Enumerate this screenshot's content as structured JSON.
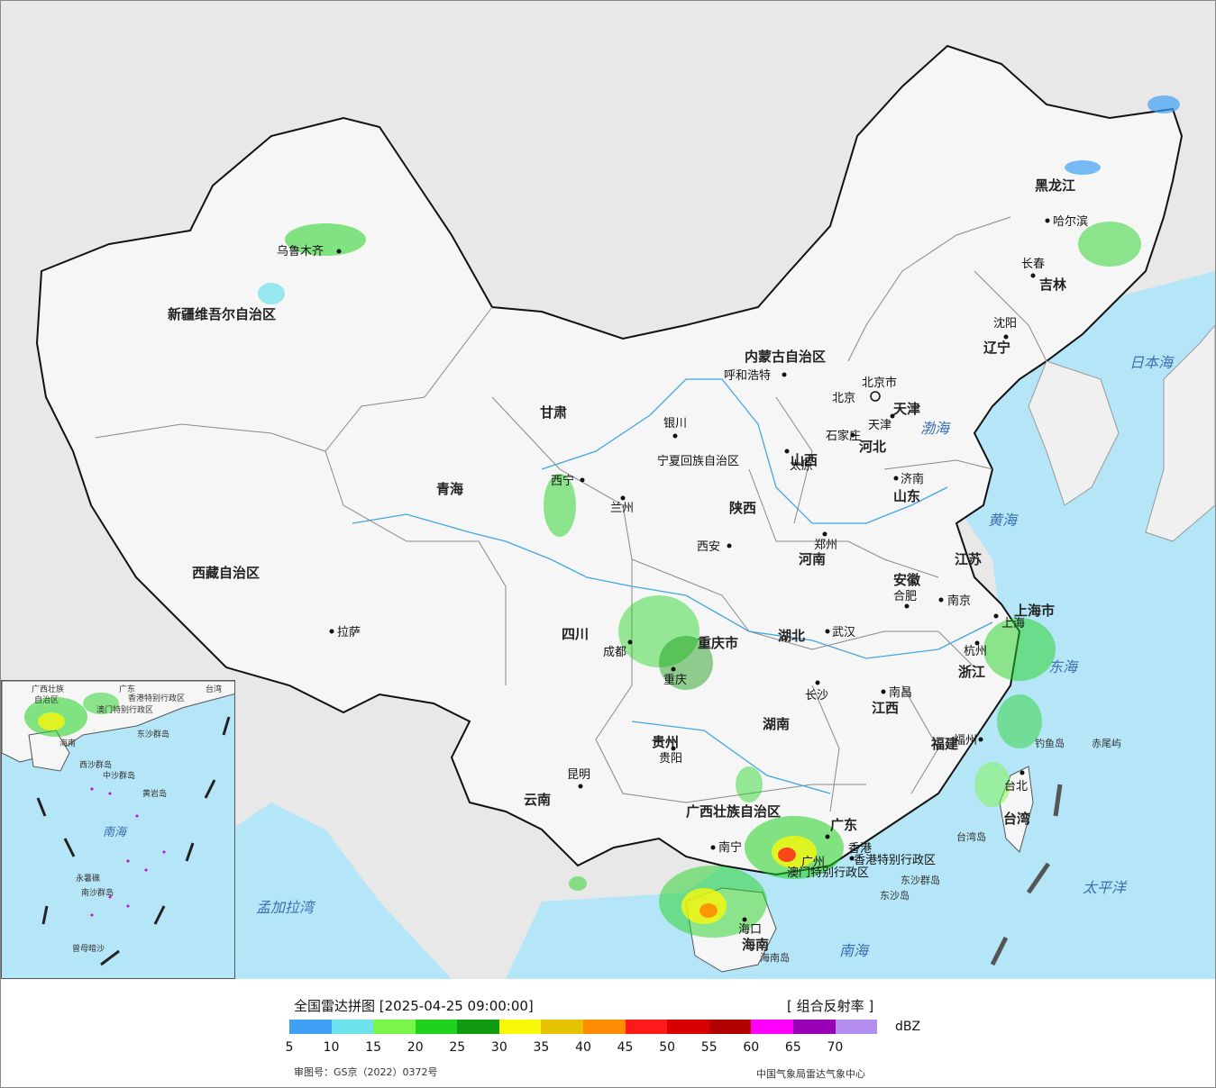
{
  "header": {
    "title": "全国雷达拼图 [2025-04-25 09:00:00]",
    "product": "[ 组合反射率 ]"
  },
  "legend": {
    "unit": "dBZ",
    "colors": [
      "#3fa0f5",
      "#6ee3ee",
      "#7af54a",
      "#1fd21f",
      "#0f9a0f",
      "#f8f80a",
      "#e6c200",
      "#ff8c00",
      "#ff1a1a",
      "#d90000",
      "#b00000",
      "#ff00ff",
      "#9900b5",
      "#b28ef0"
    ],
    "ticks": [
      "5",
      "10",
      "15",
      "20",
      "25",
      "30",
      "35",
      "40",
      "45",
      "50",
      "55",
      "60",
      "65",
      "70"
    ]
  },
  "footer": {
    "approval_number": "审图号：GS京（2022）0372号",
    "source": "中国气象局雷达气象中心"
  },
  "map": {
    "provinces": [
      "新疆维吾尔自治区",
      "西藏自治区",
      "青海",
      "甘肃",
      "内蒙古自治区",
      "黑龙江",
      "吉林",
      "辽宁",
      "河北",
      "山西",
      "陕西",
      "四川",
      "重庆市",
      "贵州",
      "云南",
      "湖北",
      "湖南",
      "河南",
      "山东",
      "江苏",
      "安徽",
      "浙江",
      "江西",
      "福建",
      "广东",
      "广西壮族自治区",
      "海南",
      "台湾",
      "上海市",
      "天津",
      "北京市",
      "宁夏回族自治区",
      "香港特别行政区",
      "澳门特别行政区"
    ],
    "cities": [
      "乌鲁木齐",
      "拉萨",
      "西宁",
      "兰州",
      "银川",
      "呼和浩特",
      "北京",
      "天津",
      "石家庄",
      "太原",
      "济南",
      "郑州",
      "西安",
      "成都",
      "重庆",
      "贵阳",
      "昆明",
      "南宁",
      "长沙",
      "武汉",
      "合肥",
      "南京",
      "上海",
      "杭州",
      "南昌",
      "福州",
      "台北",
      "广州",
      "香港",
      "海口",
      "哈尔滨",
      "长春",
      "沈阳"
    ],
    "seas": [
      "日本海",
      "渤海",
      "黄海",
      "东海",
      "太平洋",
      "南海",
      "孟加拉湾"
    ],
    "islands": [
      "钓鱼岛",
      "赤尾屿",
      "台湾岛",
      "东沙群岛",
      "东沙岛",
      "海南岛"
    ],
    "inset_labels": [
      "广西壮族",
      "自治区",
      "广东",
      "澳门特别行政区",
      "香港特别行政区",
      "台湾",
      "海南",
      "东沙群岛",
      "西沙群岛",
      "中沙群岛",
      "黄岩岛",
      "南海",
      "南沙群岛",
      "永暑礁",
      "曾母暗沙"
    ]
  }
}
